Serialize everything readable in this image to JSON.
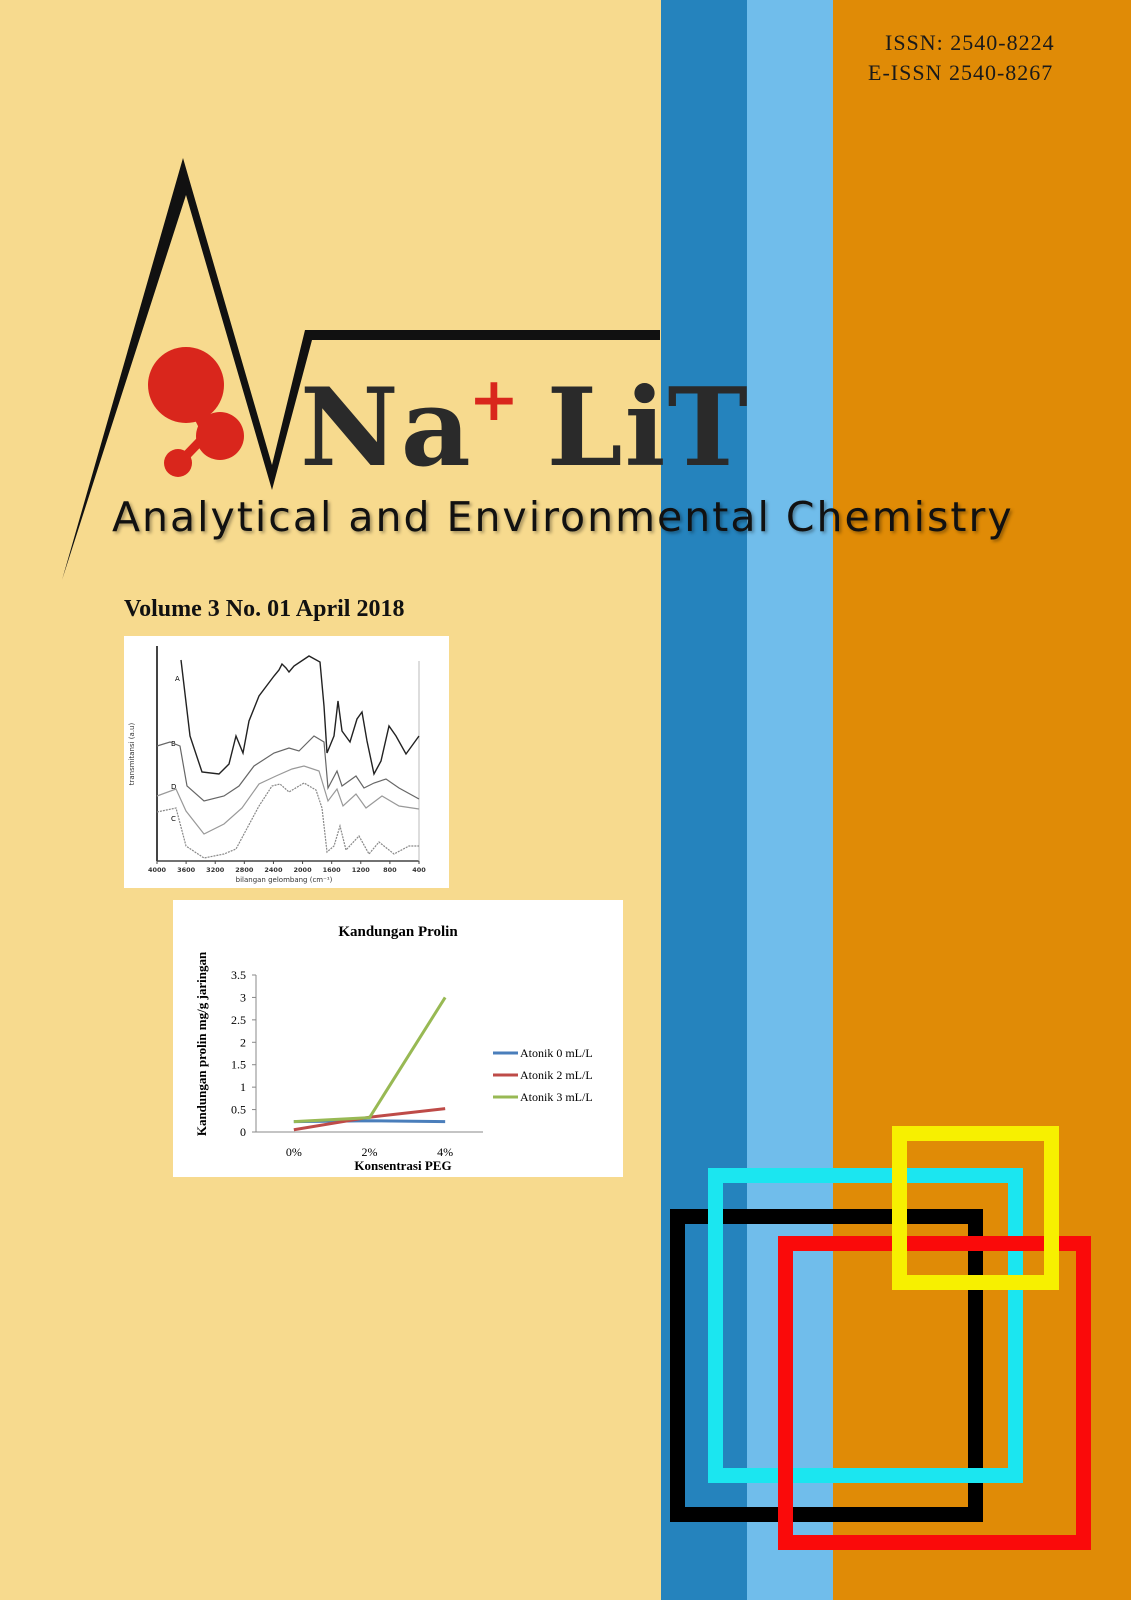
{
  "issn": "ISSN: 2540-8224",
  "eissn": "E-ISSN 2540-8267",
  "logo": {
    "brand_prefix": "Na",
    "brand_superscript": "+",
    "brand_suffix": "LiT"
  },
  "subtitle": "Analytical and Environmental Chemistry",
  "volume": "Volume 3 No. 01 April 2018",
  "colors": {
    "background": "#f7da8e",
    "stripe_dark_blue": "#2583bd",
    "stripe_light_blue": "#70bdeb",
    "stripe_orange": "#e08b06",
    "logo_red": "#d9261c"
  },
  "chart_data": [
    {
      "type": "line",
      "title": "",
      "xlabel": "bilangan gelombang (cm⁻¹)",
      "ylabel": "transmitansi (a.u)",
      "x_ticks": [
        "4000",
        "3600",
        "3200",
        "2800",
        "2400",
        "2000",
        "1600",
        "1200",
        "800",
        "400"
      ],
      "series_labels": [
        "A",
        "B",
        "D",
        "C"
      ]
    },
    {
      "type": "line",
      "title": "Kandungan Prolin",
      "xlabel": "Konsentrasi PEG",
      "ylabel": "Kandungan prolin mg/g jaringan",
      "categories": [
        "0%",
        "2%",
        "4%"
      ],
      "ylim": [
        0,
        3.5
      ],
      "y_ticks": [
        "0",
        "0.5",
        "1",
        "1.5",
        "2",
        "2.5",
        "3",
        "3.5"
      ],
      "legend_position": "right",
      "series": [
        {
          "name": "Atonik 0 mL/L",
          "color": "#4a7ebb",
          "values": [
            0.23,
            0.25,
            0.23
          ]
        },
        {
          "name": "Atonik 2 mL/L",
          "color": "#be4b48",
          "values": [
            0.05,
            0.33,
            0.52
          ]
        },
        {
          "name": "Atonik 3 mL/L",
          "color": "#98b954",
          "values": [
            0.23,
            0.32,
            3.0
          ]
        }
      ]
    }
  ]
}
